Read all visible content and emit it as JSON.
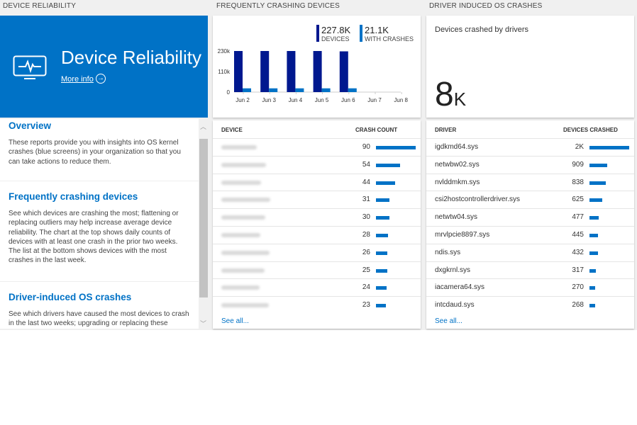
{
  "sections": {
    "reliability": "DEVICE RELIABILITY",
    "crashing": "FREQUENTLY CRASHING DEVICES",
    "drivers": "DRIVER INDUCED OS CRASHES"
  },
  "tile": {
    "title": "Device Reliability",
    "more_info": "More info",
    "icon": "monitor-pulse-icon",
    "color": "#0072c6"
  },
  "info": [
    {
      "heading": "Overview",
      "text": "These reports provide you with insights into OS kernel crashes (blue screens) in your organization so that you can take actions to reduce them."
    },
    {
      "heading": "Frequently crashing devices",
      "text": "See which devices are crashing the most; flattening or replacing outliers may help increase average device reliability. The chart at the top shows daily counts of devices with at least one crash in the prior two weeks. The list at the bottom shows devices with the most crashes in the last week."
    },
    {
      "heading": "Driver-induced OS crashes",
      "text": "See which drivers have caused the most devices to crash in the last two weeks; upgrading or replacing these drivers"
    }
  ],
  "chart_data": {
    "type": "bar",
    "categories": [
      "Jun 2",
      "Jun 3",
      "Jun 4",
      "Jun 5",
      "Jun 6",
      "Jun 7",
      "Jun 8"
    ],
    "series": [
      {
        "name": "DEVICES",
        "values": [
          230000,
          230000,
          230000,
          230000,
          228000,
          null,
          null
        ],
        "color": "#00188f"
      },
      {
        "name": "WITH CRASHES",
        "values": [
          21000,
          21000,
          21000,
          21000,
          21100,
          null,
          null
        ],
        "color": "#0072c6"
      }
    ],
    "ylim": [
      0,
      230000
    ],
    "yticks": [
      "0",
      "110k",
      "230k"
    ],
    "legend": [
      {
        "value": "227.8K",
        "label": "DEVICES"
      },
      {
        "value": "21.1K",
        "label": "WITH CRASHES"
      }
    ]
  },
  "drivers_card": {
    "label": "Devices crashed by drivers",
    "value": "8",
    "unit": "K"
  },
  "devices_table": {
    "headers": [
      "DEVICE",
      "CRASH COUNT"
    ],
    "rows": [
      {
        "count": 90
      },
      {
        "count": 54
      },
      {
        "count": 44
      },
      {
        "count": 31
      },
      {
        "count": 30
      },
      {
        "count": 28
      },
      {
        "count": 26
      },
      {
        "count": 25
      },
      {
        "count": 24
      },
      {
        "count": 23
      }
    ],
    "see_all": "See all..."
  },
  "drivers_table": {
    "headers": [
      "DRIVER",
      "DEVICES CRASHED"
    ],
    "rows": [
      {
        "name": "igdkmd64.sys",
        "count": "2K",
        "value": 2000
      },
      {
        "name": "netwbw02.sys",
        "count": "909",
        "value": 909
      },
      {
        "name": "nvlddmkm.sys",
        "count": "838",
        "value": 838
      },
      {
        "name": "csi2hostcontrollerdriver.sys",
        "count": "625",
        "value": 625
      },
      {
        "name": "netwtw04.sys",
        "count": "477",
        "value": 477
      },
      {
        "name": "mrvlpcie8897.sys",
        "count": "445",
        "value": 445
      },
      {
        "name": "ndis.sys",
        "count": "432",
        "value": 432
      },
      {
        "name": "dxgkrnl.sys",
        "count": "317",
        "value": 317
      },
      {
        "name": "iacamera64.sys",
        "count": "270",
        "value": 270
      },
      {
        "name": "intcdaud.sys",
        "count": "268",
        "value": 268
      }
    ],
    "see_all": "See all..."
  }
}
